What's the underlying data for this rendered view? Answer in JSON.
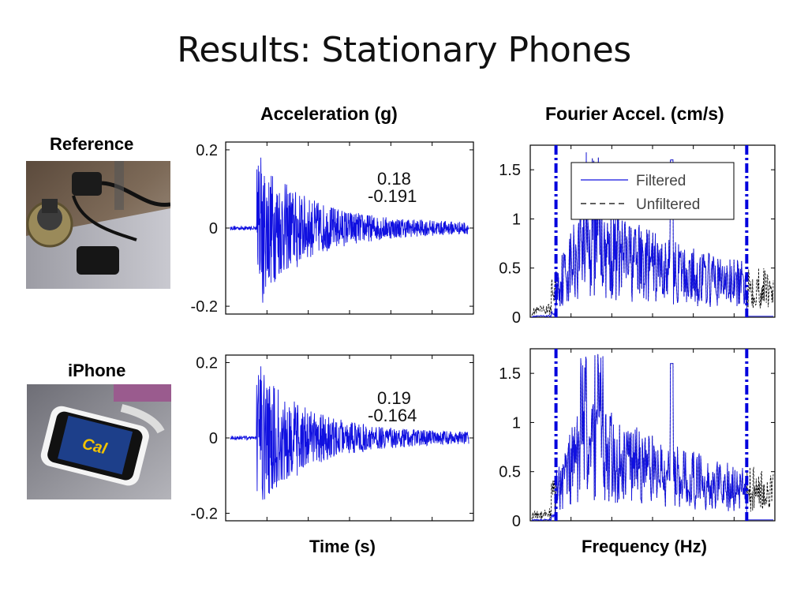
{
  "slide": {
    "title": "Results: Stationary Phones",
    "columns": {
      "acceleration": "Acceleration (g)",
      "fourier": "Fourier Accel. (cm/s)"
    },
    "rows": {
      "reference": "Reference",
      "iphone": "iPhone"
    },
    "xlabels": {
      "time": "Time (s)",
      "frequency": "Frequency (Hz)"
    }
  },
  "colors": {
    "filtered": "#1010e0",
    "unfiltered": "#000000",
    "cutoff": "#0000dd",
    "axis": "#000000"
  },
  "chart_data": [
    {
      "type": "line",
      "panel": "reference-acceleration",
      "ylim": [
        -0.22,
        0.22
      ],
      "yticks": [
        "0.2",
        "0",
        "-0.2"
      ],
      "yticks_values": [
        0.2,
        0,
        -0.2
      ],
      "annotations": [
        "0.18",
        "-0.191"
      ],
      "series": [
        {
          "values_summary": {
            "peak_max": 0.18,
            "peak_min": -0.191
          }
        }
      ]
    },
    {
      "type": "line",
      "panel": "reference-fourier",
      "ylim": [
        0,
        1.75
      ],
      "yticks": [
        "1.5",
        "1",
        "0.5",
        "0"
      ],
      "yticks_values": [
        1.5,
        1,
        0.5,
        0
      ],
      "legend": {
        "entries": [
          "Filtered",
          "Unfiltered"
        ],
        "placement": "top-right"
      },
      "series": [
        {
          "name": "Filtered"
        },
        {
          "name": "Unfiltered"
        }
      ]
    },
    {
      "type": "line",
      "panel": "iphone-acceleration",
      "ylim": [
        -0.22,
        0.22
      ],
      "yticks": [
        "0.2",
        "0",
        "-0.2"
      ],
      "yticks_values": [
        0.2,
        0,
        -0.2
      ],
      "annotations": [
        "0.19",
        "-0.164"
      ],
      "series": [
        {
          "values_summary": {
            "peak_max": 0.19,
            "peak_min": -0.164
          }
        }
      ]
    },
    {
      "type": "line",
      "panel": "iphone-fourier",
      "ylim": [
        0,
        1.75
      ],
      "yticks": [
        "1.5",
        "1",
        "0.5",
        "0"
      ],
      "yticks_values": [
        1.5,
        1,
        0.5,
        0
      ],
      "series": [
        {
          "name": "Filtered"
        },
        {
          "name": "Unfiltered"
        }
      ]
    }
  ]
}
